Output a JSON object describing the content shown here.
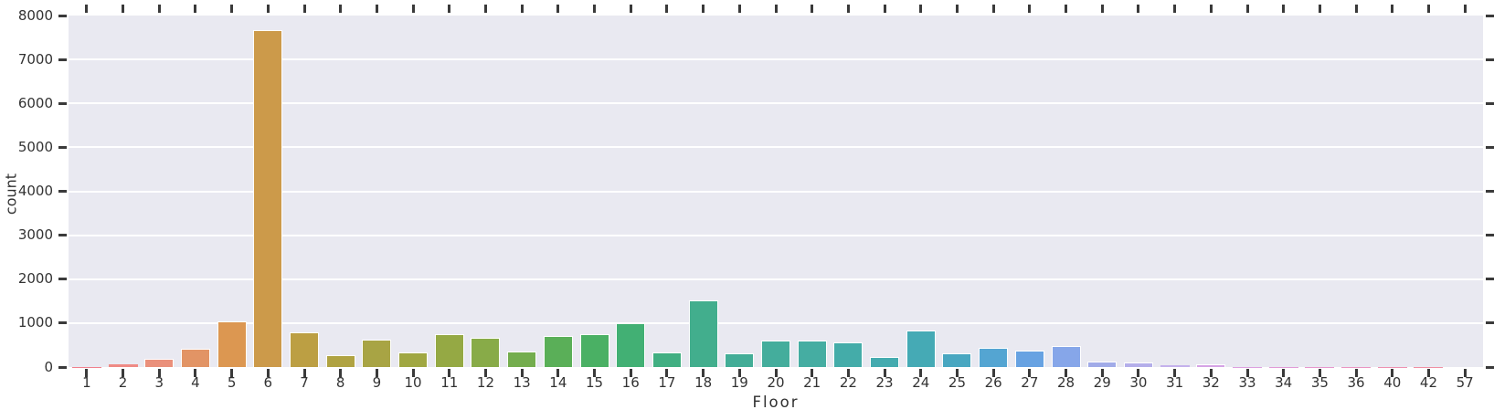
{
  "chart_data": {
    "type": "bar",
    "title": "",
    "xlabel": "Floor",
    "ylabel": "count",
    "categories": [
      "1",
      "2",
      "3",
      "4",
      "5",
      "6",
      "7",
      "8",
      "9",
      "10",
      "11",
      "12",
      "13",
      "14",
      "15",
      "16",
      "17",
      "18",
      "19",
      "20",
      "21",
      "22",
      "23",
      "24",
      "25",
      "26",
      "27",
      "28",
      "29",
      "30",
      "31",
      "32",
      "33",
      "34",
      "35",
      "36",
      "40",
      "42",
      "57"
    ],
    "values": [
      10,
      55,
      180,
      420,
      1030,
      7660,
      800,
      270,
      630,
      340,
      750,
      665,
      360,
      710,
      750,
      1000,
      340,
      1520,
      310,
      600,
      610,
      555,
      230,
      830,
      320,
      430,
      375,
      470,
      135,
      95,
      40,
      70,
      6,
      4,
      3,
      3,
      2,
      2,
      1
    ],
    "bar_colors": [
      "#f0808d",
      "#ef8a85",
      "#ea907b",
      "#e29465",
      "#dc9751",
      "#cc9a4a",
      "#bc9f43",
      "#b0a342",
      "#a8a444",
      "#a0a742",
      "#95a944",
      "#88ab48",
      "#74ad4e",
      "#5aaf58",
      "#4ab064",
      "#42b074",
      "#41af82",
      "#42ae8d",
      "#43ad97",
      "#44ad9c",
      "#45ada2",
      "#44aca9",
      "#44abaf",
      "#45aab5",
      "#49a7c1",
      "#54a5d2",
      "#67a2e2",
      "#86a6e9",
      "#a1abe8",
      "#b4aeea",
      "#c4b1ec",
      "#d5a3e5",
      "#dda0df",
      "#e19bd7",
      "#e697cd",
      "#ea95c2",
      "#ee91b1",
      "#f08fa3",
      "#f18e95"
    ],
    "ylim": [
      0,
      8000
    ],
    "yticks": [
      0,
      1000,
      2000,
      3000,
      4000,
      5000,
      6000,
      7000,
      8000
    ],
    "grid": true,
    "legend": "none",
    "plot_background": "#e9e9f1",
    "gridline_color": "#ffffff",
    "tick_mark_color": "#3a3a3a",
    "tick_label_color": "#333333",
    "axis_title_color": "#2f2f2f",
    "bar_edge_color": "#ffffff"
  }
}
